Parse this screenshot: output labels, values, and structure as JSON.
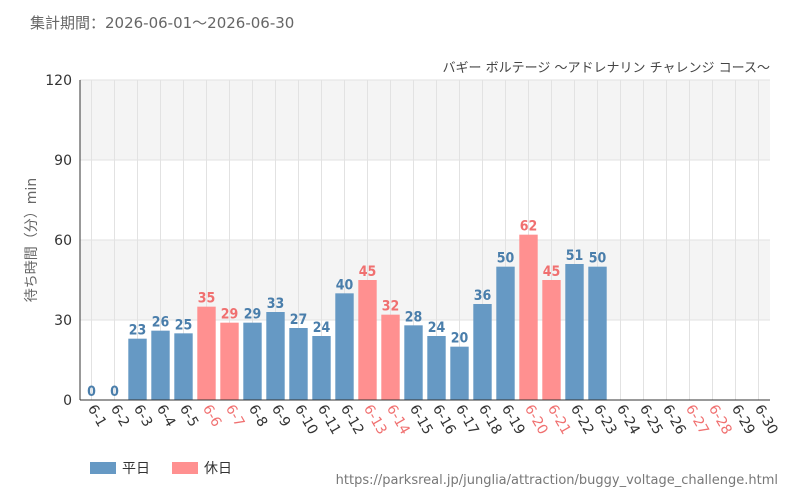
{
  "header": {
    "period_label": "集計期間：2026-06-01〜2026-06-30"
  },
  "footer": {
    "source": "https://parksreal.jp/junglia/attraction/buggy_voltage_challenge.html"
  },
  "colors": {
    "weekday": "#6699c4",
    "holiday": "#ff9090",
    "weekday_text": "#4a7eab",
    "holiday_text": "#f07070",
    "band": "#f4f4f4",
    "grid": "#e2e2e2",
    "axis": "#333333"
  },
  "chart_data": {
    "type": "bar",
    "title": "バギー ボルテージ 〜アドレナリン チャレンジ コース〜",
    "ylabel": "待ち時間（分）min",
    "xlabel": "",
    "ylim": [
      0,
      120
    ],
    "yticks": [
      0,
      30,
      60,
      90,
      120
    ],
    "grid": true,
    "legend_position": "bottom-left",
    "categories": [
      "6-1",
      "6-2",
      "6-3",
      "6-4",
      "6-5",
      "6-6",
      "6-7",
      "6-8",
      "6-9",
      "6-10",
      "6-11",
      "6-12",
      "6-13",
      "6-14",
      "6-15",
      "6-16",
      "6-17",
      "6-18",
      "6-19",
      "6-20",
      "6-21",
      "6-22",
      "6-23",
      "6-24",
      "6-25",
      "6-26",
      "6-27",
      "6-28",
      "6-29",
      "6-30"
    ],
    "values": [
      0,
      0,
      23,
      26,
      25,
      35,
      29,
      29,
      33,
      27,
      24,
      40,
      45,
      32,
      28,
      24,
      20,
      36,
      50,
      62,
      45,
      51,
      50,
      null,
      null,
      null,
      null,
      null,
      null,
      null
    ],
    "day_type": [
      "weekday",
      "weekday",
      "weekday",
      "weekday",
      "weekday",
      "holiday",
      "holiday",
      "weekday",
      "weekday",
      "weekday",
      "weekday",
      "weekday",
      "holiday",
      "holiday",
      "weekday",
      "weekday",
      "weekday",
      "weekday",
      "weekday",
      "holiday",
      "holiday",
      "weekday",
      "weekday",
      "weekday",
      "weekday",
      "weekday",
      "holiday",
      "holiday",
      "weekday",
      "weekday"
    ],
    "series": [
      {
        "name": "平日",
        "color": "#6699c4"
      },
      {
        "name": "休日",
        "color": "#ff9090"
      }
    ]
  }
}
